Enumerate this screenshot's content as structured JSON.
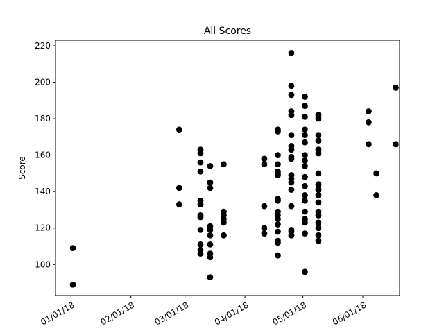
{
  "chart_data": {
    "type": "scatter",
    "title": "All Scores",
    "xlabel": "",
    "ylabel": "Score",
    "x_axis_type": "date",
    "xlim": [
      "2017-12-24",
      "2018-06-20"
    ],
    "ylim": [
      83,
      223
    ],
    "x_ticks": [
      {
        "date": "2018-01-01",
        "label": "01/01/18"
      },
      {
        "date": "2018-02-01",
        "label": "02/01/18"
      },
      {
        "date": "2018-03-01",
        "label": "03/01/18"
      },
      {
        "date": "2018-04-01",
        "label": "04/01/18"
      },
      {
        "date": "2018-05-01",
        "label": "05/01/18"
      },
      {
        "date": "2018-06-01",
        "label": "06/01/18"
      }
    ],
    "x_tick_rotation_deg": 30,
    "y_ticks": [
      100,
      120,
      140,
      160,
      180,
      200,
      220
    ],
    "grid": false,
    "legend": "none",
    "marker_color": "#000000",
    "series": [
      {
        "points": [
          {
            "x": "2018-01-02",
            "y": 109
          },
          {
            "x": "2018-01-02",
            "y": 89
          },
          {
            "x": "2018-02-26",
            "y": 174
          },
          {
            "x": "2018-02-26",
            "y": 142
          },
          {
            "x": "2018-02-26",
            "y": 133
          },
          {
            "x": "2018-03-09",
            "y": 163
          },
          {
            "x": "2018-03-09",
            "y": 161
          },
          {
            "x": "2018-03-09",
            "y": 156
          },
          {
            "x": "2018-03-09",
            "y": 151
          },
          {
            "x": "2018-03-09",
            "y": 135
          },
          {
            "x": "2018-03-09",
            "y": 133
          },
          {
            "x": "2018-03-09",
            "y": 127
          },
          {
            "x": "2018-03-09",
            "y": 126
          },
          {
            "x": "2018-03-09",
            "y": 119
          },
          {
            "x": "2018-03-09",
            "y": 111
          },
          {
            "x": "2018-03-09",
            "y": 108
          },
          {
            "x": "2018-03-09",
            "y": 106
          },
          {
            "x": "2018-03-14",
            "y": 154
          },
          {
            "x": "2018-03-14",
            "y": 145
          },
          {
            "x": "2018-03-14",
            "y": 142
          },
          {
            "x": "2018-03-14",
            "y": 121
          },
          {
            "x": "2018-03-14",
            "y": 119
          },
          {
            "x": "2018-03-14",
            "y": 116
          },
          {
            "x": "2018-03-14",
            "y": 111
          },
          {
            "x": "2018-03-14",
            "y": 106
          },
          {
            "x": "2018-03-14",
            "y": 104
          },
          {
            "x": "2018-03-14",
            "y": 93
          },
          {
            "x": "2018-03-21",
            "y": 155
          },
          {
            "x": "2018-03-21",
            "y": 129
          },
          {
            "x": "2018-03-21",
            "y": 127
          },
          {
            "x": "2018-03-21",
            "y": 125
          },
          {
            "x": "2018-03-21",
            "y": 123
          },
          {
            "x": "2018-03-21",
            "y": 116
          },
          {
            "x": "2018-04-11",
            "y": 158
          },
          {
            "x": "2018-04-11",
            "y": 155
          },
          {
            "x": "2018-04-11",
            "y": 132
          },
          {
            "x": "2018-04-11",
            "y": 120
          },
          {
            "x": "2018-04-11",
            "y": 117
          },
          {
            "x": "2018-04-18",
            "y": 174
          },
          {
            "x": "2018-04-18",
            "y": 173
          },
          {
            "x": "2018-04-18",
            "y": 160
          },
          {
            "x": "2018-04-18",
            "y": 155
          },
          {
            "x": "2018-04-18",
            "y": 151
          },
          {
            "x": "2018-04-18",
            "y": 150
          },
          {
            "x": "2018-04-18",
            "y": 149
          },
          {
            "x": "2018-04-18",
            "y": 136
          },
          {
            "x": "2018-04-18",
            "y": 135
          },
          {
            "x": "2018-04-18",
            "y": 129
          },
          {
            "x": "2018-04-18",
            "y": 127
          },
          {
            "x": "2018-04-18",
            "y": 125
          },
          {
            "x": "2018-04-18",
            "y": 122
          },
          {
            "x": "2018-04-18",
            "y": 118
          },
          {
            "x": "2018-04-18",
            "y": 113
          },
          {
            "x": "2018-04-18",
            "y": 112
          },
          {
            "x": "2018-04-18",
            "y": 105
          },
          {
            "x": "2018-04-25",
            "y": 216
          },
          {
            "x": "2018-04-25",
            "y": 198
          },
          {
            "x": "2018-04-25",
            "y": 193
          },
          {
            "x": "2018-04-25",
            "y": 184
          },
          {
            "x": "2018-04-25",
            "y": 182
          },
          {
            "x": "2018-04-25",
            "y": 171
          },
          {
            "x": "2018-04-25",
            "y": 165
          },
          {
            "x": "2018-04-25",
            "y": 163
          },
          {
            "x": "2018-04-25",
            "y": 159
          },
          {
            "x": "2018-04-25",
            "y": 158
          },
          {
            "x": "2018-04-25",
            "y": 149
          },
          {
            "x": "2018-04-25",
            "y": 147
          },
          {
            "x": "2018-04-25",
            "y": 145
          },
          {
            "x": "2018-04-25",
            "y": 141
          },
          {
            "x": "2018-04-25",
            "y": 132
          },
          {
            "x": "2018-04-25",
            "y": 119
          },
          {
            "x": "2018-04-25",
            "y": 118
          },
          {
            "x": "2018-04-25",
            "y": 116
          },
          {
            "x": "2018-05-02",
            "y": 192
          },
          {
            "x": "2018-05-02",
            "y": 187
          },
          {
            "x": "2018-05-02",
            "y": 181
          },
          {
            "x": "2018-05-02",
            "y": 174
          },
          {
            "x": "2018-05-02",
            "y": 171
          },
          {
            "x": "2018-05-02",
            "y": 167
          },
          {
            "x": "2018-05-02",
            "y": 160
          },
          {
            "x": "2018-05-02",
            "y": 157
          },
          {
            "x": "2018-05-02",
            "y": 154
          },
          {
            "x": "2018-05-02",
            "y": 148
          },
          {
            "x": "2018-05-02",
            "y": 143
          },
          {
            "x": "2018-05-02",
            "y": 138
          },
          {
            "x": "2018-05-02",
            "y": 135
          },
          {
            "x": "2018-05-02",
            "y": 129
          },
          {
            "x": "2018-05-02",
            "y": 125
          },
          {
            "x": "2018-05-02",
            "y": 123
          },
          {
            "x": "2018-05-02",
            "y": 117
          },
          {
            "x": "2018-05-02",
            "y": 96
          },
          {
            "x": "2018-05-09",
            "y": 182
          },
          {
            "x": "2018-05-09",
            "y": 180
          },
          {
            "x": "2018-05-09",
            "y": 171
          },
          {
            "x": "2018-05-09",
            "y": 168
          },
          {
            "x": "2018-05-09",
            "y": 163
          },
          {
            "x": "2018-05-09",
            "y": 161
          },
          {
            "x": "2018-05-09",
            "y": 150
          },
          {
            "x": "2018-05-09",
            "y": 144
          },
          {
            "x": "2018-05-09",
            "y": 141
          },
          {
            "x": "2018-05-09",
            "y": 138
          },
          {
            "x": "2018-05-09",
            "y": 134
          },
          {
            "x": "2018-05-09",
            "y": 129
          },
          {
            "x": "2018-05-09",
            "y": 127
          },
          {
            "x": "2018-05-09",
            "y": 123
          },
          {
            "x": "2018-05-09",
            "y": 120
          },
          {
            "x": "2018-05-09",
            "y": 116
          },
          {
            "x": "2018-05-09",
            "y": 113
          },
          {
            "x": "2018-06-04",
            "y": 184
          },
          {
            "x": "2018-06-04",
            "y": 178
          },
          {
            "x": "2018-06-04",
            "y": 166
          },
          {
            "x": "2018-06-08",
            "y": 150
          },
          {
            "x": "2018-06-08",
            "y": 138
          },
          {
            "x": "2018-06-18",
            "y": 197
          },
          {
            "x": "2018-06-18",
            "y": 166
          }
        ]
      }
    ]
  }
}
